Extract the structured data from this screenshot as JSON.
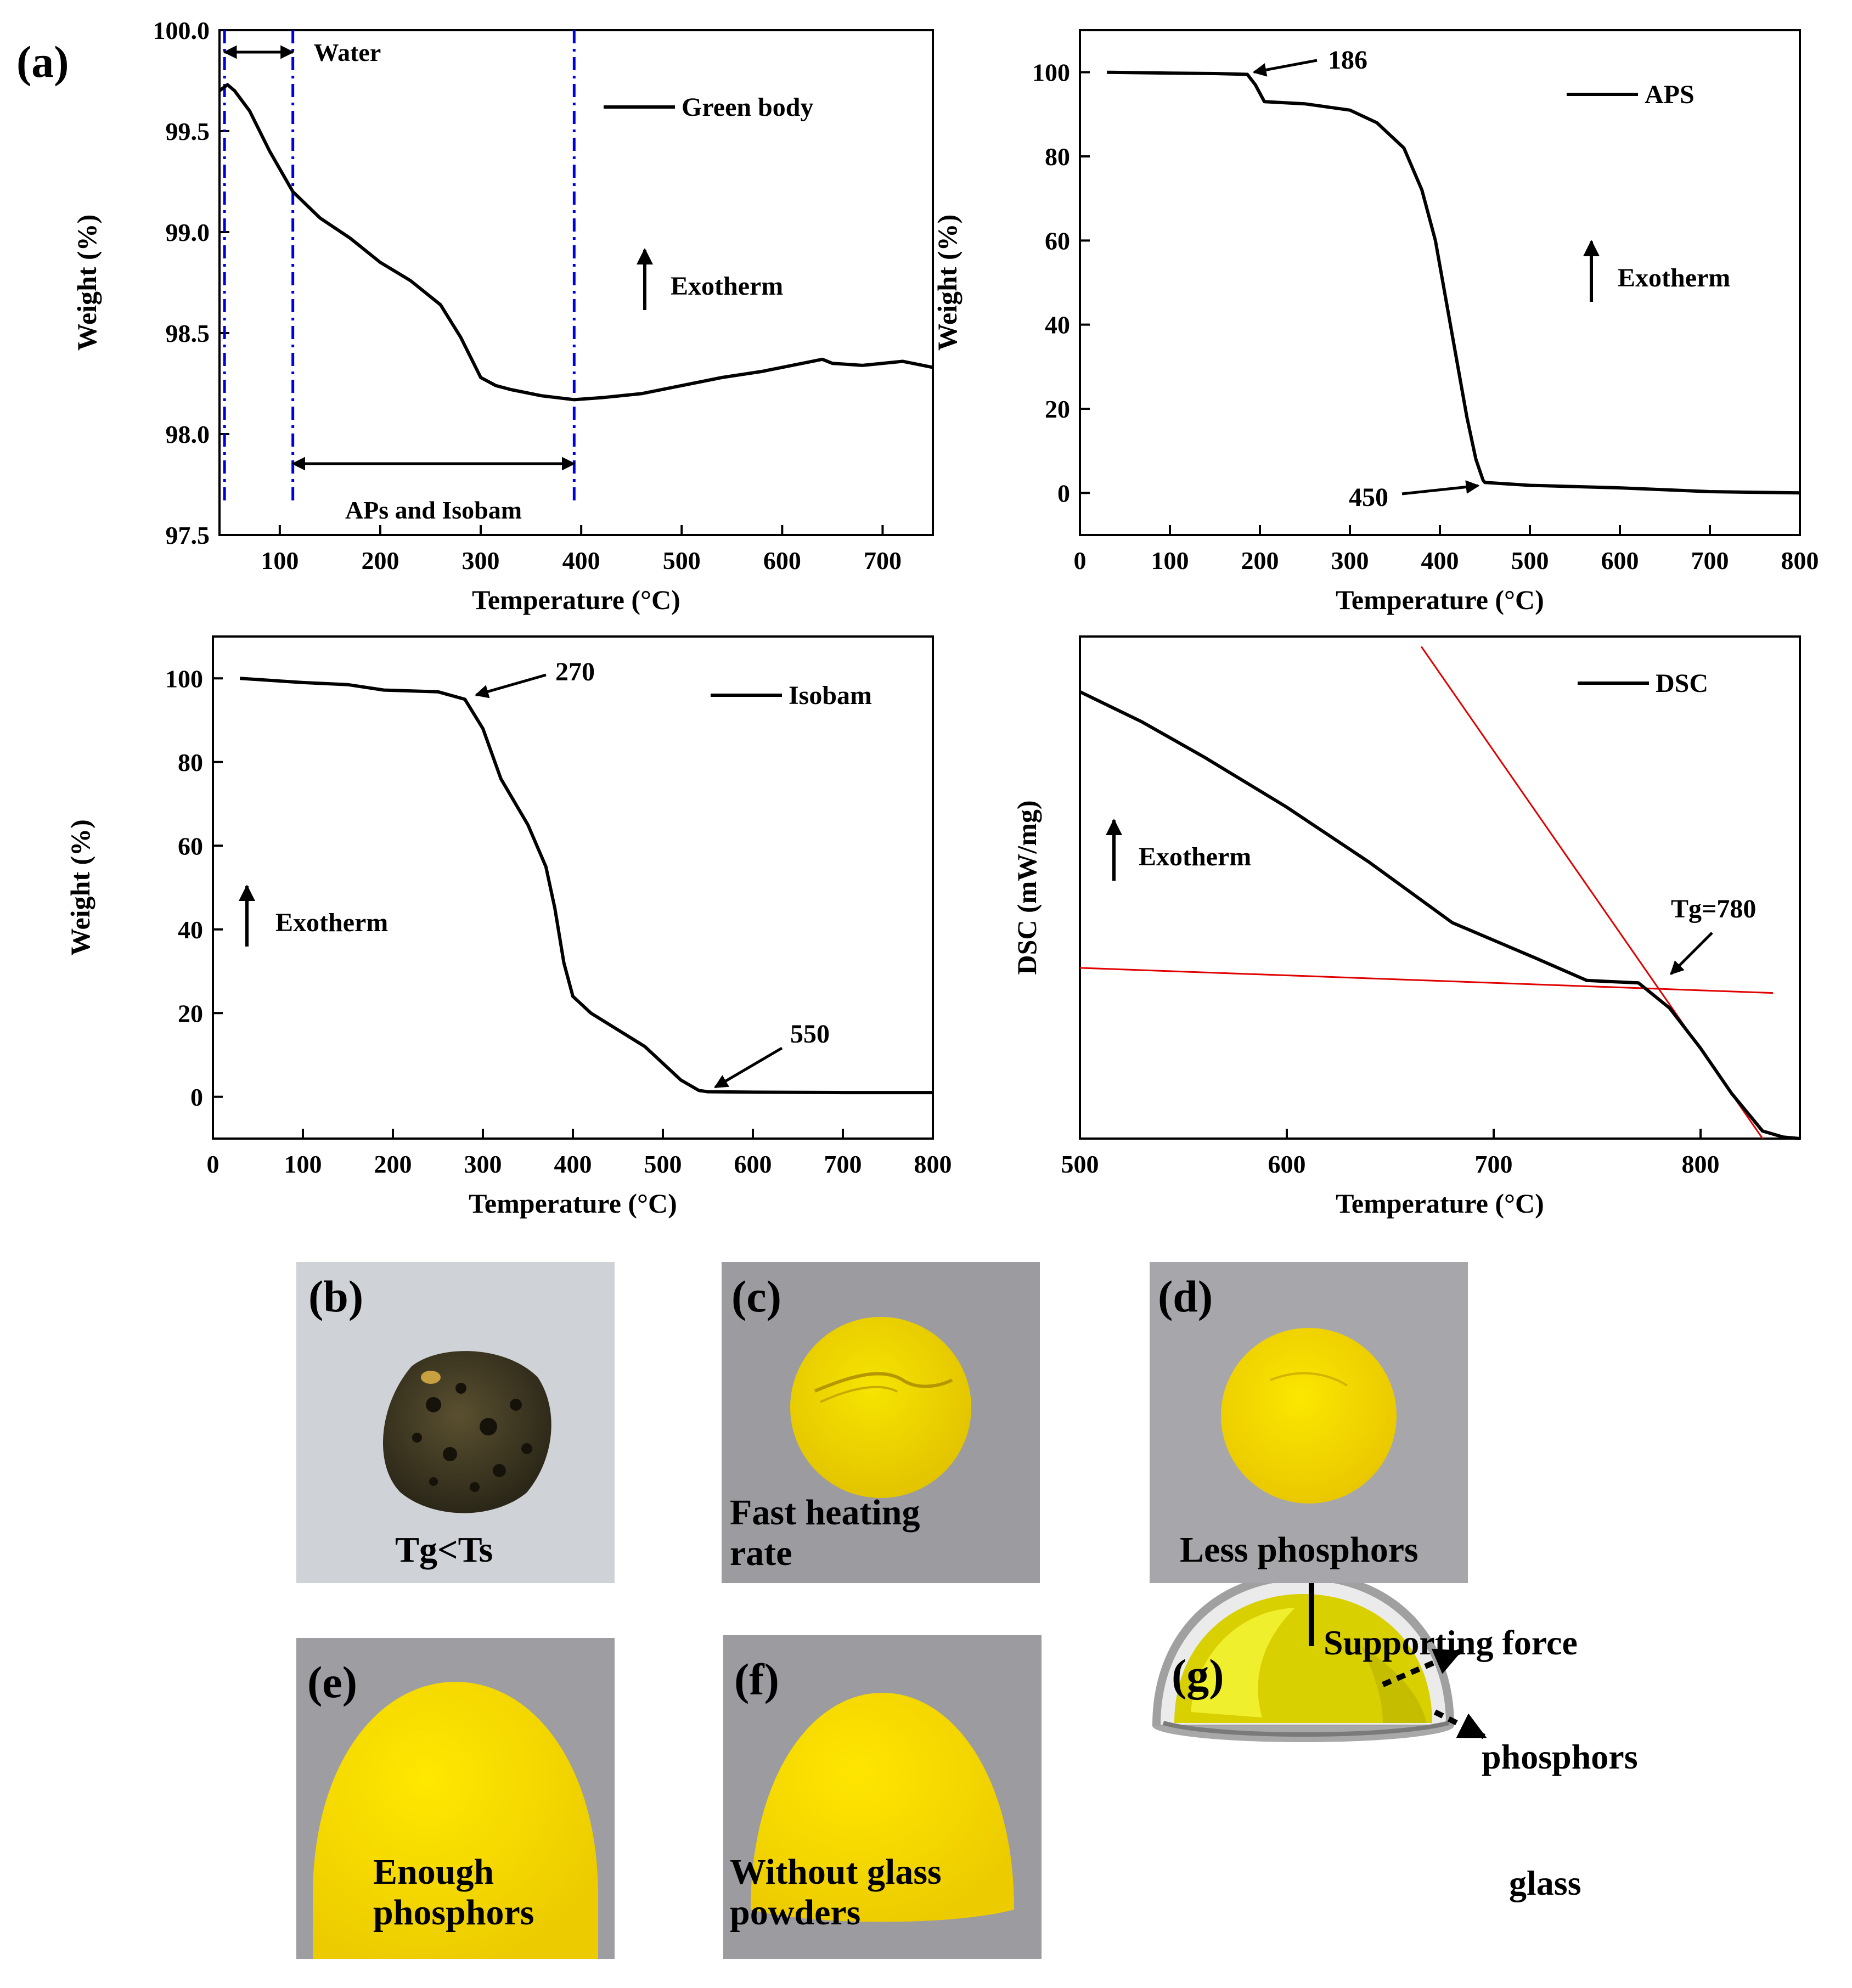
{
  "figure_label": "(a)",
  "chart_data": [
    {
      "id": "green",
      "type": "line",
      "xlabel": "Temperature (°C)",
      "ylabel": "Weight (%)",
      "xlim": [
        40,
        750
      ],
      "ylim": [
        97.5,
        100.0
      ],
      "xticks": [
        100,
        200,
        300,
        400,
        500,
        600,
        700
      ],
      "yticks": [
        "97.5",
        "98.0",
        "98.5",
        "99.0",
        "99.5",
        "100.0"
      ],
      "legend": "Green body",
      "exotherm": "Exotherm",
      "annotations": {
        "water": "Water",
        "aps_isobam": "APs and Isobam"
      },
      "guides_x": [
        45,
        113,
        393
      ],
      "series": [
        {
          "name": "Green body",
          "x": [
            40,
            48,
            55,
            70,
            90,
            113,
            140,
            170,
            200,
            230,
            260,
            280,
            300,
            315,
            330,
            360,
            393,
            420,
            460,
            500,
            540,
            580,
            620,
            640,
            650,
            680,
            720,
            750
          ],
          "y": [
            99.7,
            99.73,
            99.7,
            99.6,
            99.4,
            99.2,
            99.07,
            98.97,
            98.85,
            98.76,
            98.64,
            98.48,
            98.28,
            98.24,
            98.22,
            98.19,
            98.17,
            98.18,
            98.2,
            98.24,
            98.28,
            98.31,
            98.35,
            98.37,
            98.35,
            98.34,
            98.36,
            98.33
          ]
        }
      ]
    },
    {
      "id": "aps",
      "type": "line",
      "xlabel": "Temperature (°C)",
      "ylabel": "Weight (%)",
      "xlim": [
        0,
        800
      ],
      "ylim": [
        -10,
        110
      ],
      "xticks": [
        0,
        100,
        200,
        300,
        400,
        500,
        600,
        700,
        800
      ],
      "yticks": [
        0,
        20,
        40,
        60,
        80,
        100
      ],
      "legend": "APS",
      "exotherm": "Exotherm",
      "annotations": {
        "onset": "186",
        "end": "450"
      },
      "series": [
        {
          "name": "APS",
          "x": [
            30,
            100,
            150,
            186,
            195,
            205,
            250,
            300,
            330,
            360,
            380,
            395,
            410,
            420,
            430,
            440,
            448,
            450,
            500,
            600,
            700,
            800
          ],
          "y": [
            100,
            99.8,
            99.7,
            99.5,
            97,
            93,
            92.5,
            91,
            88,
            82,
            72,
            60,
            42,
            30,
            18,
            8,
            3,
            2.5,
            1.8,
            1.2,
            0.3,
            0
          ]
        }
      ]
    },
    {
      "id": "isobam",
      "type": "line",
      "xlabel": "Temperature (°C)",
      "ylabel": "Weight (%)",
      "xlim": [
        0,
        800
      ],
      "ylim": [
        -10,
        110
      ],
      "xticks": [
        0,
        100,
        200,
        300,
        400,
        500,
        600,
        700,
        800
      ],
      "yticks": [
        0,
        20,
        40,
        60,
        80,
        100
      ],
      "legend": "Isobam",
      "exotherm": "Exotherm",
      "annotations": {
        "onset": "270",
        "end": "550"
      },
      "series": [
        {
          "name": "Isobam",
          "x": [
            30,
            100,
            150,
            190,
            250,
            280,
            300,
            320,
            350,
            370,
            380,
            390,
            400,
            420,
            450,
            480,
            500,
            520,
            540,
            550,
            600,
            700,
            800
          ],
          "y": [
            100,
            99,
            98.5,
            97.2,
            96.8,
            95,
            88,
            76,
            65,
            55,
            45,
            32,
            24,
            20,
            16,
            12,
            8,
            4,
            1.5,
            1.2,
            1.1,
            1.0,
            1.0
          ]
        }
      ]
    },
    {
      "id": "dsc",
      "type": "line",
      "xlabel": "Temperature (°C)",
      "ylabel": "DSC (mW/mg)",
      "xlim": [
        500,
        848
      ],
      "ylim": [
        0,
        100
      ],
      "xticks": [
        500,
        600,
        700,
        800
      ],
      "yticks": [],
      "legend": "DSC",
      "exotherm": "Exotherm",
      "annotations": {
        "tg": "Tg=780"
      },
      "tangents": [
        {
          "x": [
            500,
            835
          ],
          "y": [
            34,
            29
          ]
        },
        {
          "x": [
            665,
            830
          ],
          "y": [
            98,
            0
          ]
        }
      ],
      "series": [
        {
          "name": "DSC",
          "x": [
            500,
            530,
            560,
            600,
            640,
            680,
            720,
            745,
            770,
            785,
            800,
            815,
            830,
            840,
            848
          ],
          "y": [
            89,
            83,
            76,
            66,
            55,
            43,
            36,
            31.5,
            31,
            26,
            18,
            9,
            1.5,
            0.3,
            0
          ]
        }
      ]
    }
  ],
  "photos": [
    {
      "id": "b",
      "label": "(b)",
      "caption": [
        "Tg<Ts"
      ]
    },
    {
      "id": "c",
      "label": "(c)",
      "caption": [
        "Fast heating",
        "rate"
      ]
    },
    {
      "id": "d",
      "label": "(d)",
      "caption": [
        "Less phosphors"
      ]
    },
    {
      "id": "e",
      "label": "(e)",
      "caption": [
        "Enough",
        "phosphors"
      ]
    },
    {
      "id": "f",
      "label": "(f)",
      "caption": [
        "Without glass",
        "powders"
      ]
    }
  ],
  "schematic": {
    "label": "(g)",
    "force": "Supporting force",
    "phosphors": "phosphors",
    "glass": "glass"
  },
  "colors": {
    "curve": "#000000",
    "guide": "#0000dd",
    "tangent": "#e00000",
    "phosphor": "#f4d800"
  }
}
